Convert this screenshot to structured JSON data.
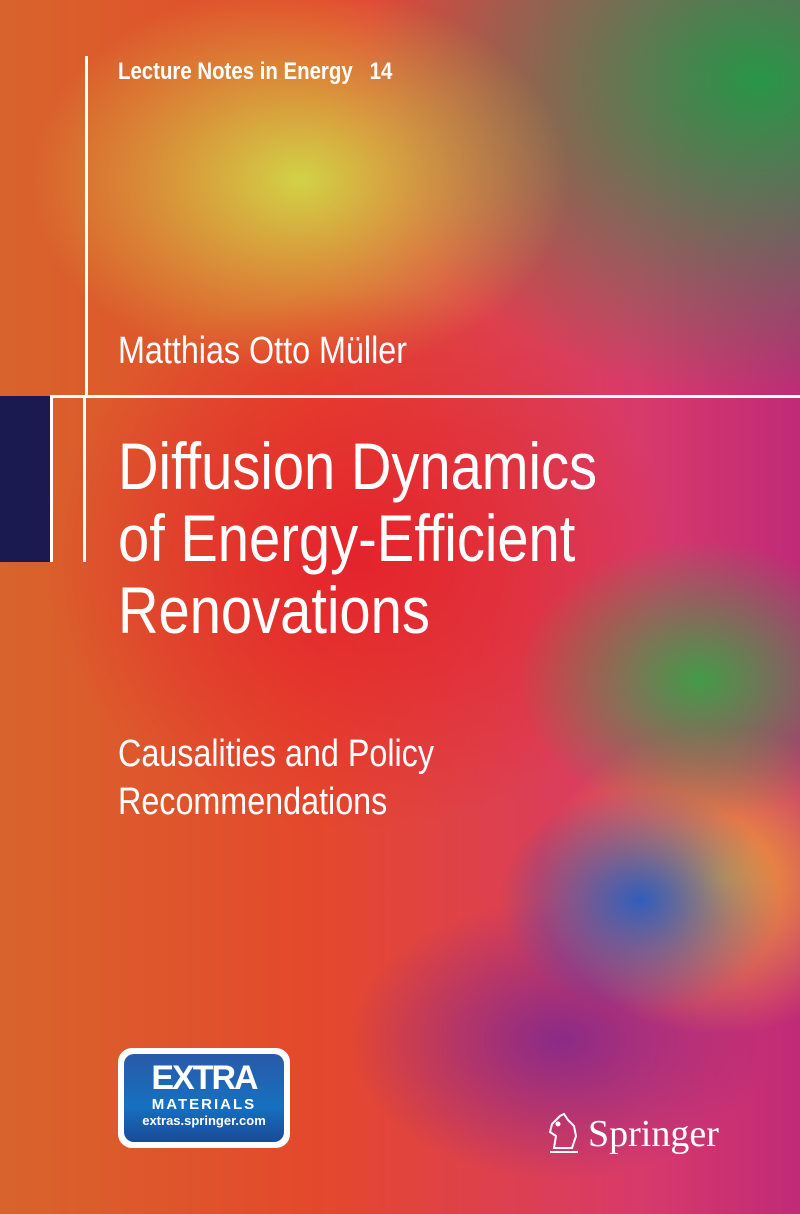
{
  "series": {
    "name": "Lecture Notes in Energy",
    "volume": "14"
  },
  "author": "Matthias Otto Müller",
  "title": [
    "Diffusion Dynamics",
    "of Energy-Efficient",
    "Renovations"
  ],
  "subtitle": [
    "Causalities and Policy",
    "Recommendations"
  ],
  "badge": {
    "line1": "EXTRA",
    "line2": "MATERIALS",
    "line3": "extras.springer.com"
  },
  "publisher": {
    "name": "Springer",
    "logo_icon": "springer-knight-icon"
  },
  "colors": {
    "navy": "#1a1a50",
    "badge_blue": "#1670c0"
  }
}
